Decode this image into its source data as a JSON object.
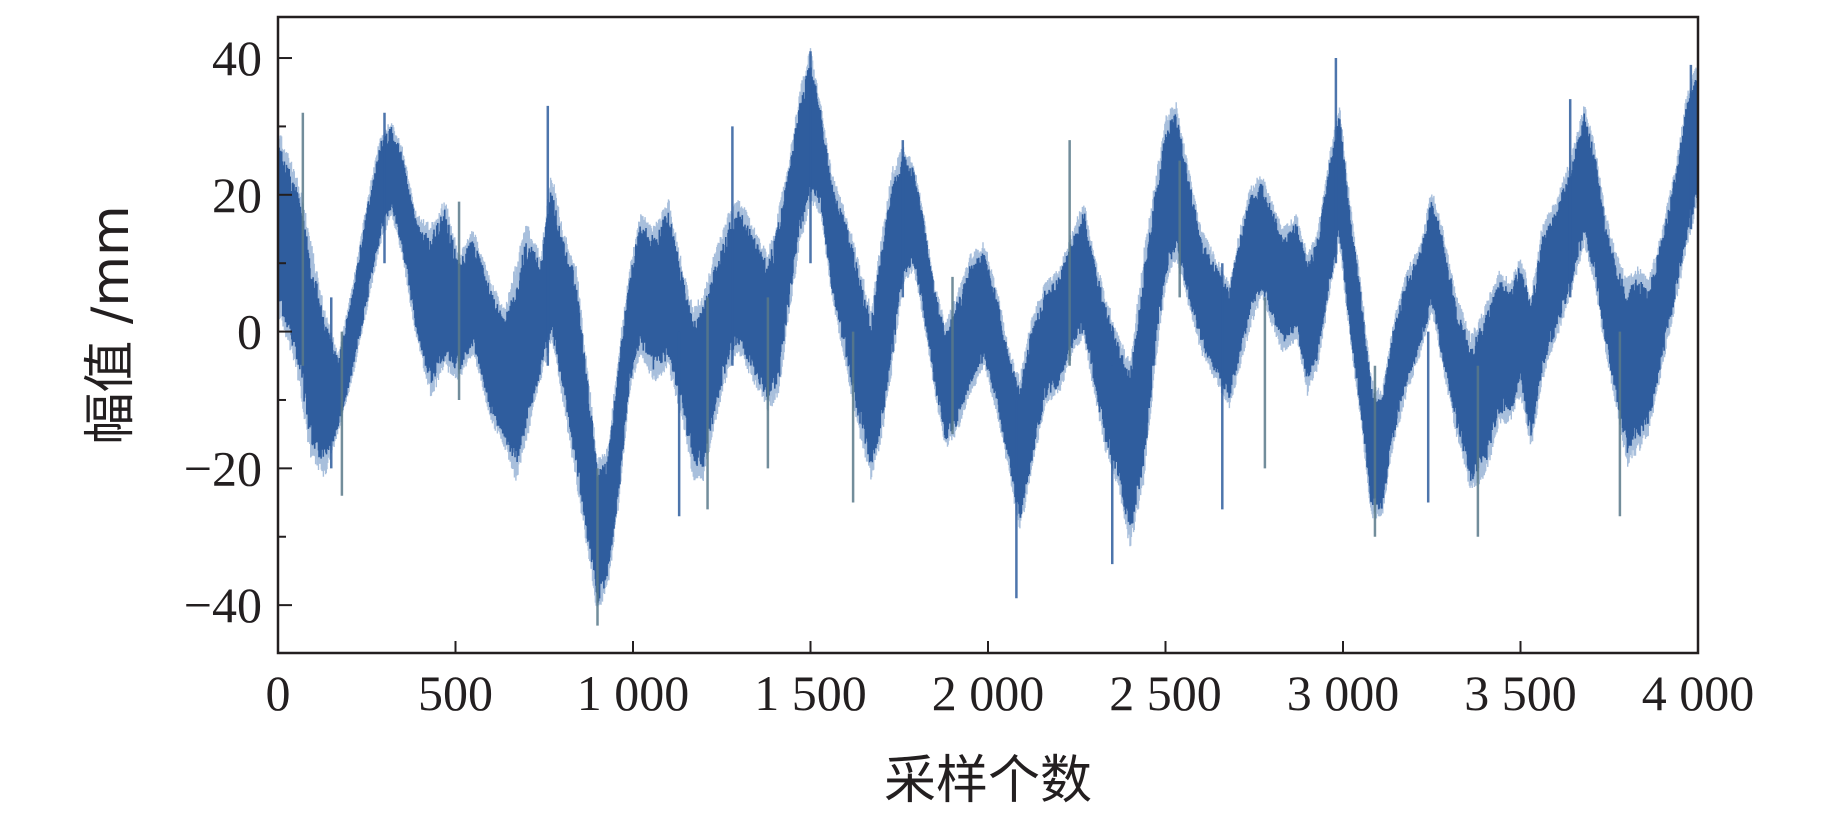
{
  "chart_data": {
    "type": "line",
    "title": "",
    "xlabel": "采样个数",
    "ylabel": "幅值 /mm",
    "xlim": [
      0,
      4000
    ],
    "ylim": [
      -47,
      46
    ],
    "x_ticks": [
      0,
      500,
      1000,
      1500,
      2000,
      2500,
      3000,
      3500,
      4000
    ],
    "x_tick_labels": [
      "0",
      "500",
      "1 000",
      "1 500",
      "2 000",
      "2 500",
      "3 000",
      "3 500",
      "4 000"
    ],
    "y_ticks": [
      -40,
      -20,
      0,
      20,
      40
    ],
    "y_tick_labels": [
      "−40",
      "−20",
      "0",
      "20",
      "40"
    ],
    "y_minor_ticks": [
      -30,
      -10,
      10,
      30
    ],
    "grid": false,
    "legend": "none",
    "colors": {
      "series": "#2f5d9e",
      "series_light": "#9fb8d8",
      "axis": "#231f20"
    },
    "series": [
      {
        "envelope_x": [
          0,
          30,
          60,
          90,
          130,
          170,
          210,
          250,
          290,
          320,
          350,
          390,
          430,
          470,
          510,
          550,
          600,
          640,
          670,
          700,
          740,
          770,
          800,
          840,
          870,
          900,
          930,
          960,
          990,
          1020,
          1060,
          1100,
          1140,
          1170,
          1200,
          1230,
          1270,
          1300,
          1340,
          1380,
          1410,
          1440,
          1470,
          1500,
          1530,
          1560,
          1600,
          1640,
          1670,
          1700,
          1730,
          1760,
          1790,
          1820,
          1850,
          1880,
          1910,
          1950,
          1990,
          2030,
          2060,
          2090,
          2120,
          2160,
          2200,
          2240,
          2270,
          2300,
          2330,
          2370,
          2400,
          2440,
          2470,
          2500,
          2530,
          2560,
          2600,
          2640,
          2680,
          2710,
          2740,
          2770,
          2800,
          2830,
          2870,
          2900,
          2930,
          2960,
          2990,
          3020,
          3050,
          3080,
          3110,
          3140,
          3180,
          3220,
          3250,
          3280,
          3320,
          3360,
          3400,
          3440,
          3470,
          3500,
          3530,
          3560,
          3600,
          3640,
          3680,
          3710,
          3740,
          3770,
          3800,
          3830,
          3860,
          3900,
          3940,
          3970,
          4000
        ],
        "upper": [
          28,
          24,
          20,
          12,
          2,
          -4,
          6,
          18,
          28,
          30,
          26,
          16,
          14,
          18,
          10,
          14,
          6,
          2,
          8,
          14,
          10,
          22,
          14,
          8,
          -6,
          -20,
          -18,
          -4,
          8,
          16,
          14,
          18,
          8,
          2,
          4,
          10,
          16,
          18,
          14,
          10,
          16,
          24,
          34,
          40,
          32,
          22,
          16,
          8,
          2,
          12,
          22,
          26,
          24,
          16,
          6,
          0,
          4,
          10,
          12,
          4,
          -4,
          -8,
          0,
          6,
          8,
          14,
          18,
          10,
          4,
          -2,
          -6,
          10,
          20,
          30,
          32,
          24,
          14,
          10,
          6,
          14,
          20,
          22,
          18,
          14,
          16,
          10,
          14,
          24,
          32,
          18,
          6,
          -8,
          -10,
          0,
          8,
          12,
          20,
          14,
          4,
          -2,
          2,
          8,
          6,
          10,
          4,
          14,
          18,
          24,
          32,
          26,
          16,
          10,
          6,
          8,
          6,
          14,
          24,
          34,
          38
        ],
        "lower": [
          4,
          0,
          -6,
          -16,
          -20,
          -14,
          -6,
          4,
          14,
          18,
          12,
          0,
          -8,
          -4,
          -6,
          -2,
          -12,
          -16,
          -20,
          -14,
          -6,
          0,
          -8,
          -20,
          -30,
          -40,
          -36,
          -24,
          -8,
          -2,
          -6,
          -4,
          -12,
          -20,
          -20,
          -12,
          -4,
          -2,
          -6,
          -10,
          -8,
          4,
          14,
          20,
          18,
          6,
          -4,
          -14,
          -20,
          -14,
          -4,
          8,
          10,
          2,
          -8,
          -16,
          -14,
          -8,
          -4,
          -12,
          -20,
          -28,
          -20,
          -10,
          -8,
          -2,
          0,
          -8,
          -16,
          -22,
          -30,
          -20,
          -4,
          8,
          12,
          6,
          -2,
          -6,
          -10,
          -4,
          2,
          6,
          2,
          -2,
          0,
          -8,
          -4,
          6,
          14,
          0,
          -12,
          -26,
          -26,
          -16,
          -8,
          -2,
          4,
          -4,
          -14,
          -22,
          -20,
          -12,
          -12,
          -8,
          -16,
          -6,
          0,
          6,
          14,
          8,
          -2,
          -10,
          -18,
          -16,
          -14,
          -4,
          6,
          14,
          20
        ],
        "spikes": [
          {
            "x": 70,
            "min": -5,
            "max": 32
          },
          {
            "x": 150,
            "min": -20,
            "max": 5
          },
          {
            "x": 180,
            "min": -24,
            "max": 0
          },
          {
            "x": 300,
            "min": 10,
            "max": 32
          },
          {
            "x": 510,
            "min": -10,
            "max": 19
          },
          {
            "x": 760,
            "min": -5,
            "max": 33
          },
          {
            "x": 900,
            "min": -43,
            "max": -20
          },
          {
            "x": 1130,
            "min": -27,
            "max": 0
          },
          {
            "x": 1210,
            "min": -26,
            "max": 5
          },
          {
            "x": 1280,
            "min": -5,
            "max": 30
          },
          {
            "x": 1380,
            "min": -20,
            "max": 5
          },
          {
            "x": 1500,
            "min": 10,
            "max": 41
          },
          {
            "x": 1620,
            "min": -25,
            "max": 0
          },
          {
            "x": 1760,
            "min": 5,
            "max": 28
          },
          {
            "x": 1900,
            "min": -15,
            "max": 8
          },
          {
            "x": 2080,
            "min": -39,
            "max": -10
          },
          {
            "x": 2230,
            "min": -5,
            "max": 28
          },
          {
            "x": 2350,
            "min": -34,
            "max": -5
          },
          {
            "x": 2540,
            "min": 5,
            "max": 25
          },
          {
            "x": 2660,
            "min": -26,
            "max": 10
          },
          {
            "x": 2780,
            "min": -20,
            "max": 5
          },
          {
            "x": 2980,
            "min": 10,
            "max": 40
          },
          {
            "x": 3090,
            "min": -30,
            "max": -5
          },
          {
            "x": 3240,
            "min": -25,
            "max": 0
          },
          {
            "x": 3380,
            "min": -30,
            "max": -5
          },
          {
            "x": 3640,
            "min": 5,
            "max": 34
          },
          {
            "x": 3780,
            "min": -27,
            "max": 0
          },
          {
            "x": 3980,
            "min": 15,
            "max": 39
          }
        ]
      }
    ]
  }
}
